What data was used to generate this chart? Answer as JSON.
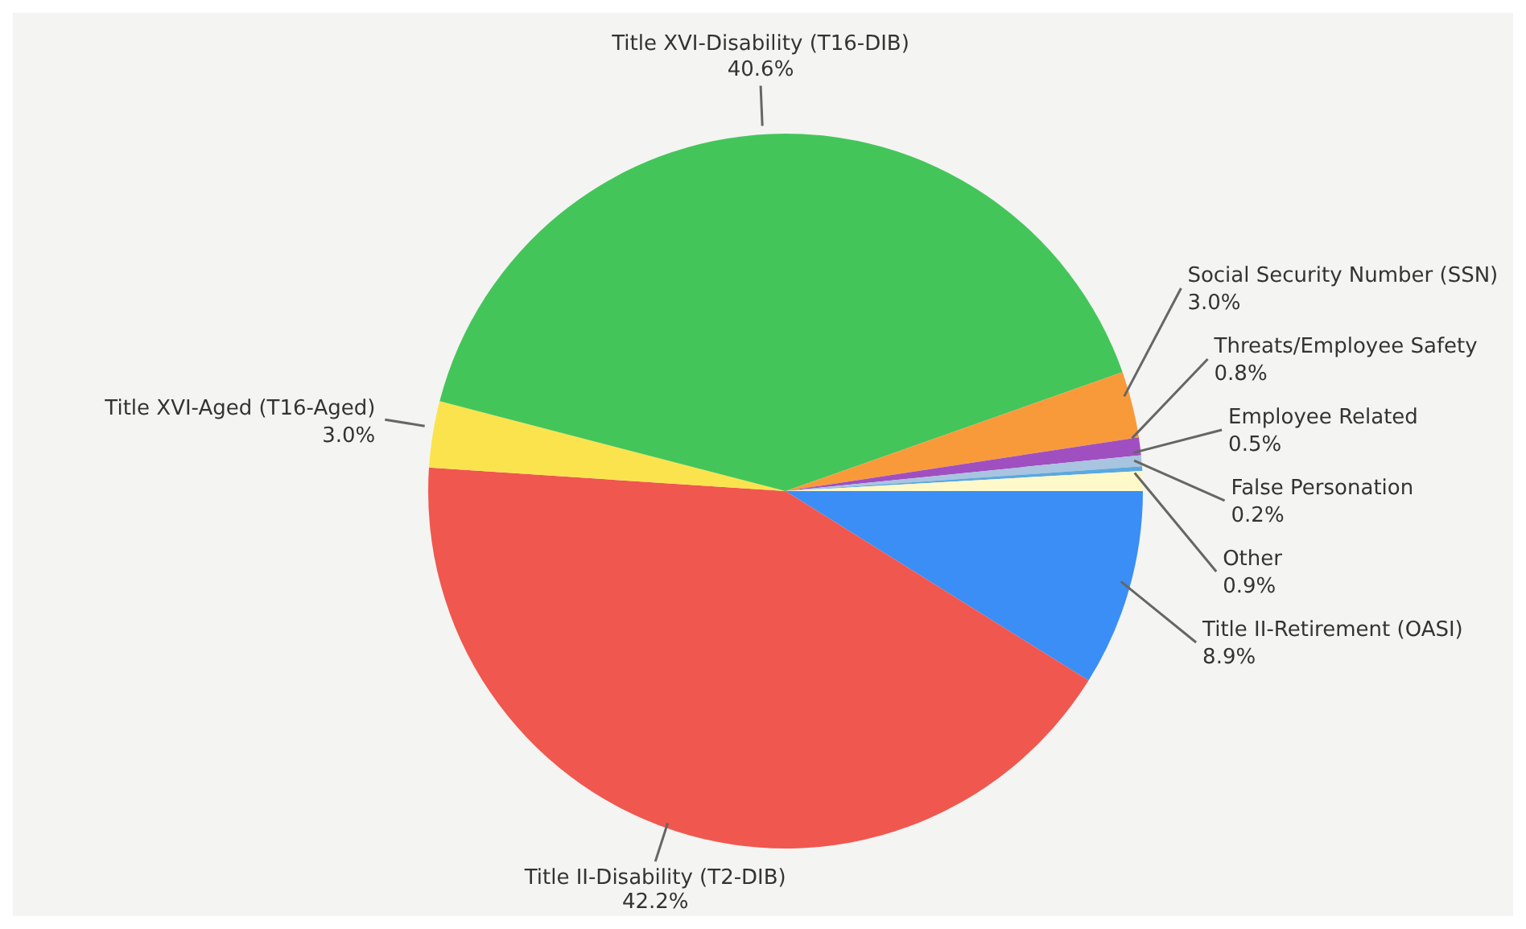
{
  "chart_data": {
    "type": "pie",
    "categories": [
      "Title II-Retirement (OASI)",
      "Title II-Disability (T2-DIB)",
      "Title XVI-Aged (T16-Aged)",
      "Title XVI-Disability (T16-DIB)",
      "Social Security Number (SSN)",
      "Threats/Employee Safety",
      "Employee Related",
      "False Personation",
      "Other"
    ],
    "values": [
      8.9,
      42.2,
      3.0,
      40.6,
      3.0,
      0.8,
      0.5,
      0.2,
      0.9
    ],
    "value_labels": [
      "8.9%",
      "42.2%",
      "3.0%",
      "40.6%",
      "3.0%",
      "0.8%",
      "0.5%",
      "0.2%",
      "0.9%"
    ],
    "colors": [
      "#3a8ef6",
      "#f0574f",
      "#fbe34e",
      "#44c55a",
      "#f99a3a",
      "#a04fc0",
      "#a8c4e0",
      "#5aa8e0",
      "#fff8c8"
    ]
  }
}
